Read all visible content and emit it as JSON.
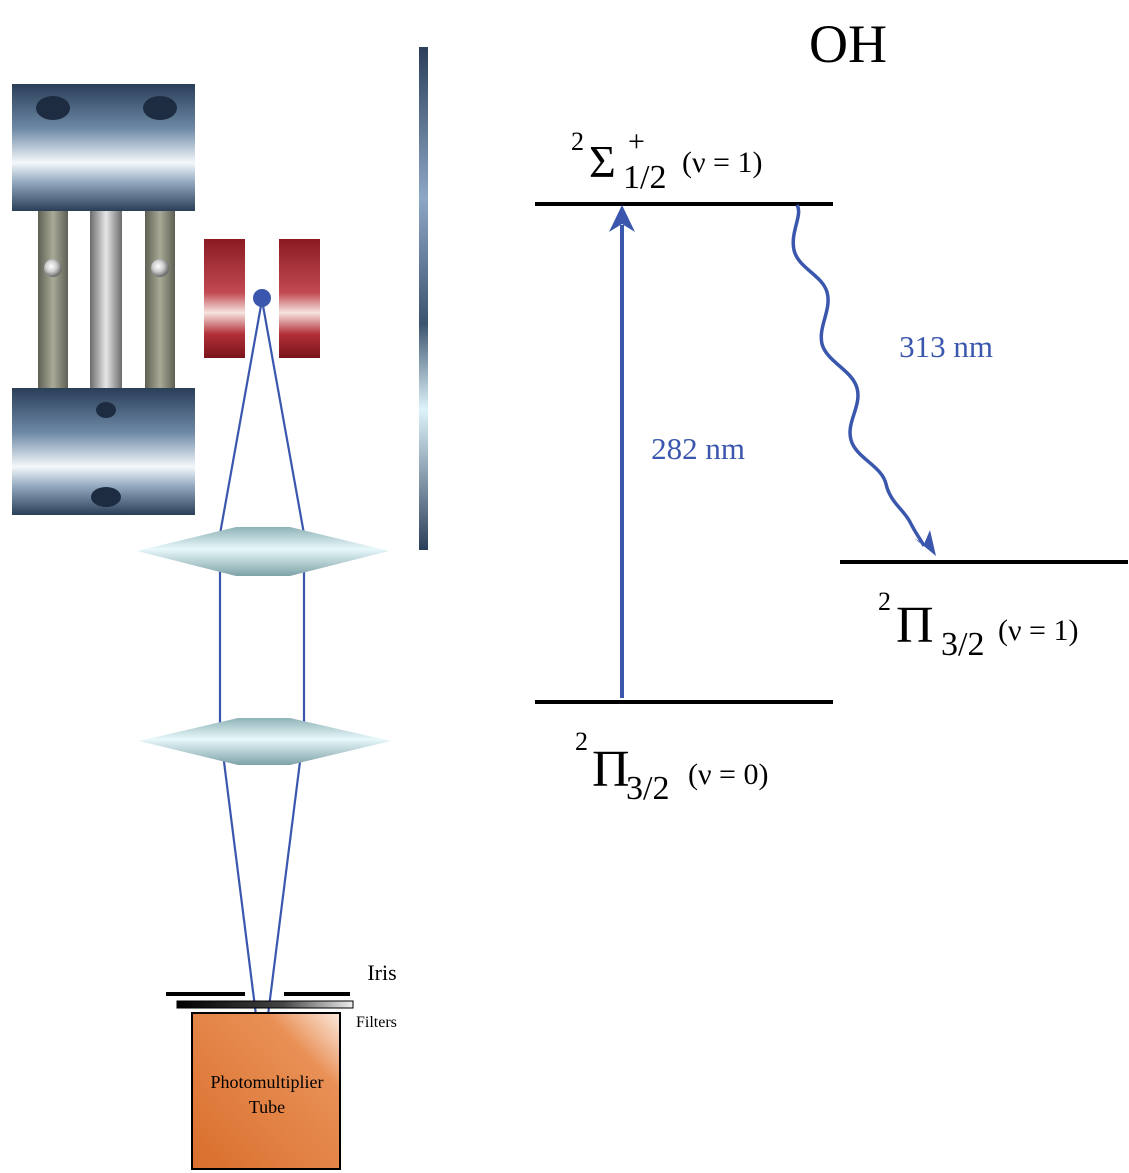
{
  "title": "OH",
  "levels": {
    "upper": {
      "base": "Σ",
      "sup_left": "2",
      "sup_right": "+",
      "sub": "1/2",
      "vib": "(ν = 1)"
    },
    "ground": {
      "base": "Π",
      "sup_left": "2",
      "sub": "3/2",
      "vib": "(ν = 0)"
    },
    "mid": {
      "base": "Π",
      "sup_left": "2",
      "sub": "3/2",
      "vib": "(ν = 1)"
    }
  },
  "transitions": {
    "excitation": "282 nm",
    "emission": "313 nm"
  },
  "apparatus": {
    "iris_label": "Iris",
    "filters_label": "Filters",
    "pmt_line1": "Photomultiplier",
    "pmt_line2": "Tube"
  },
  "colors": {
    "arrow_blue": "#3a57ad",
    "level_black": "#000000",
    "pmt_orange": "#e07a38"
  }
}
